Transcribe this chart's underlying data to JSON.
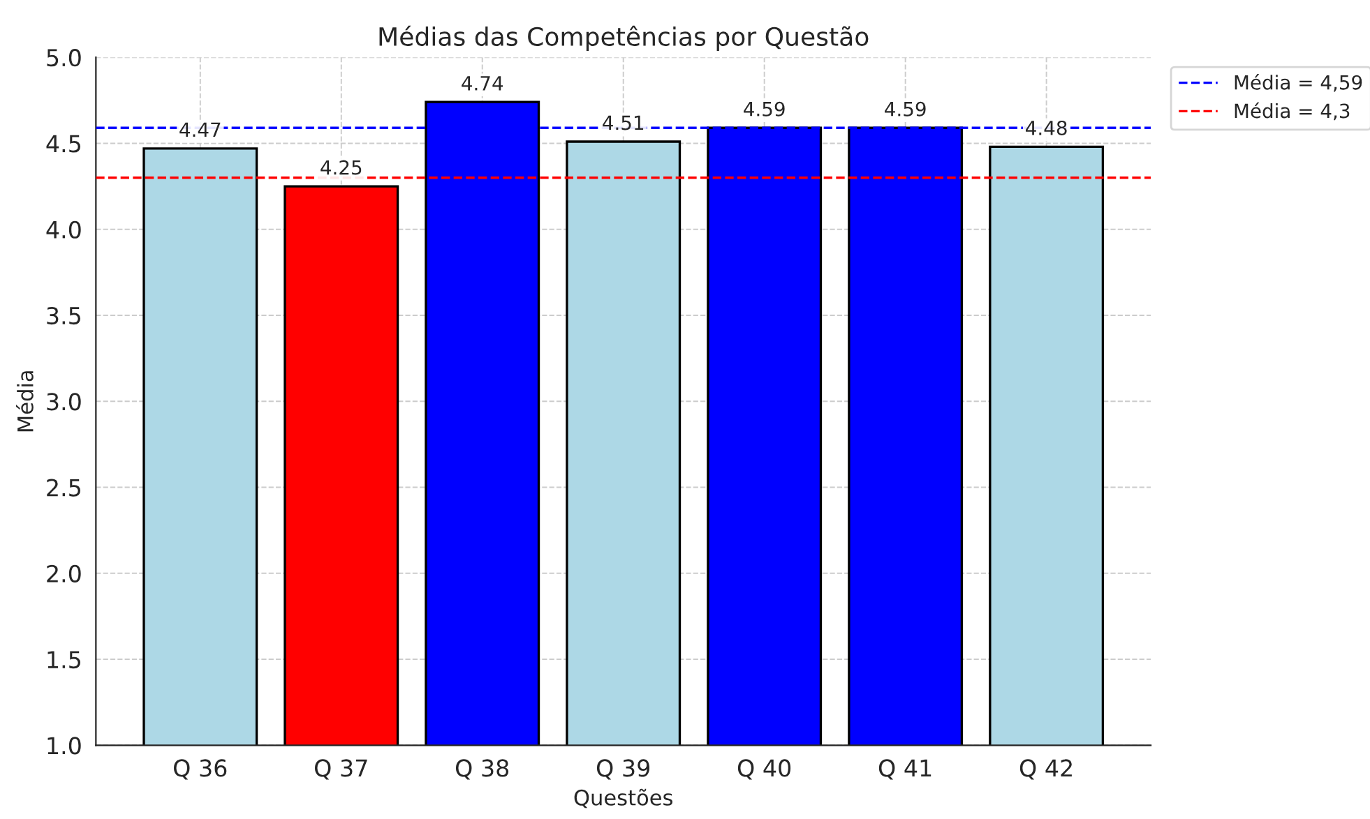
{
  "chart_data": {
    "type": "bar",
    "title": "Médias das Competências por Questão",
    "xlabel": "Questões",
    "ylabel": "Média",
    "categories": [
      "Q 36",
      "Q 37",
      "Q 38",
      "Q 39",
      "Q 40",
      "Q 41",
      "Q 42"
    ],
    "values": [
      4.47,
      4.25,
      4.74,
      4.51,
      4.59,
      4.59,
      4.48
    ],
    "colors": [
      "#add8e6",
      "#ff0000",
      "#0000ff",
      "#add8e6",
      "#0000ff",
      "#0000ff",
      "#add8e6"
    ],
    "ylim": [
      1.0,
      5.0
    ],
    "yticks": [
      {
        "value": 1.0,
        "label": "1.0"
      },
      {
        "value": 1.5,
        "label": "1.5"
      },
      {
        "value": 2.0,
        "label": "2.0"
      },
      {
        "value": 2.5,
        "label": "2.5"
      },
      {
        "value": 3.0,
        "label": "3.0"
      },
      {
        "value": 3.5,
        "label": "3.5"
      },
      {
        "value": 4.0,
        "label": "4.0"
      },
      {
        "value": 4.5,
        "label": "4.5"
      },
      {
        "value": 5.0,
        "label": "5.0"
      }
    ],
    "ref_lines": [
      {
        "axis": "y",
        "value": 4.59,
        "label": "Média = 4,59",
        "color": "#0000ff",
        "line_style": "dashed"
      },
      {
        "axis": "y",
        "value": 4.3,
        "label": "Média = 4,3",
        "color": "#ff0000",
        "line_style": "dashed"
      }
    ],
    "data_labels": true,
    "grid": true,
    "legend": "top right"
  }
}
